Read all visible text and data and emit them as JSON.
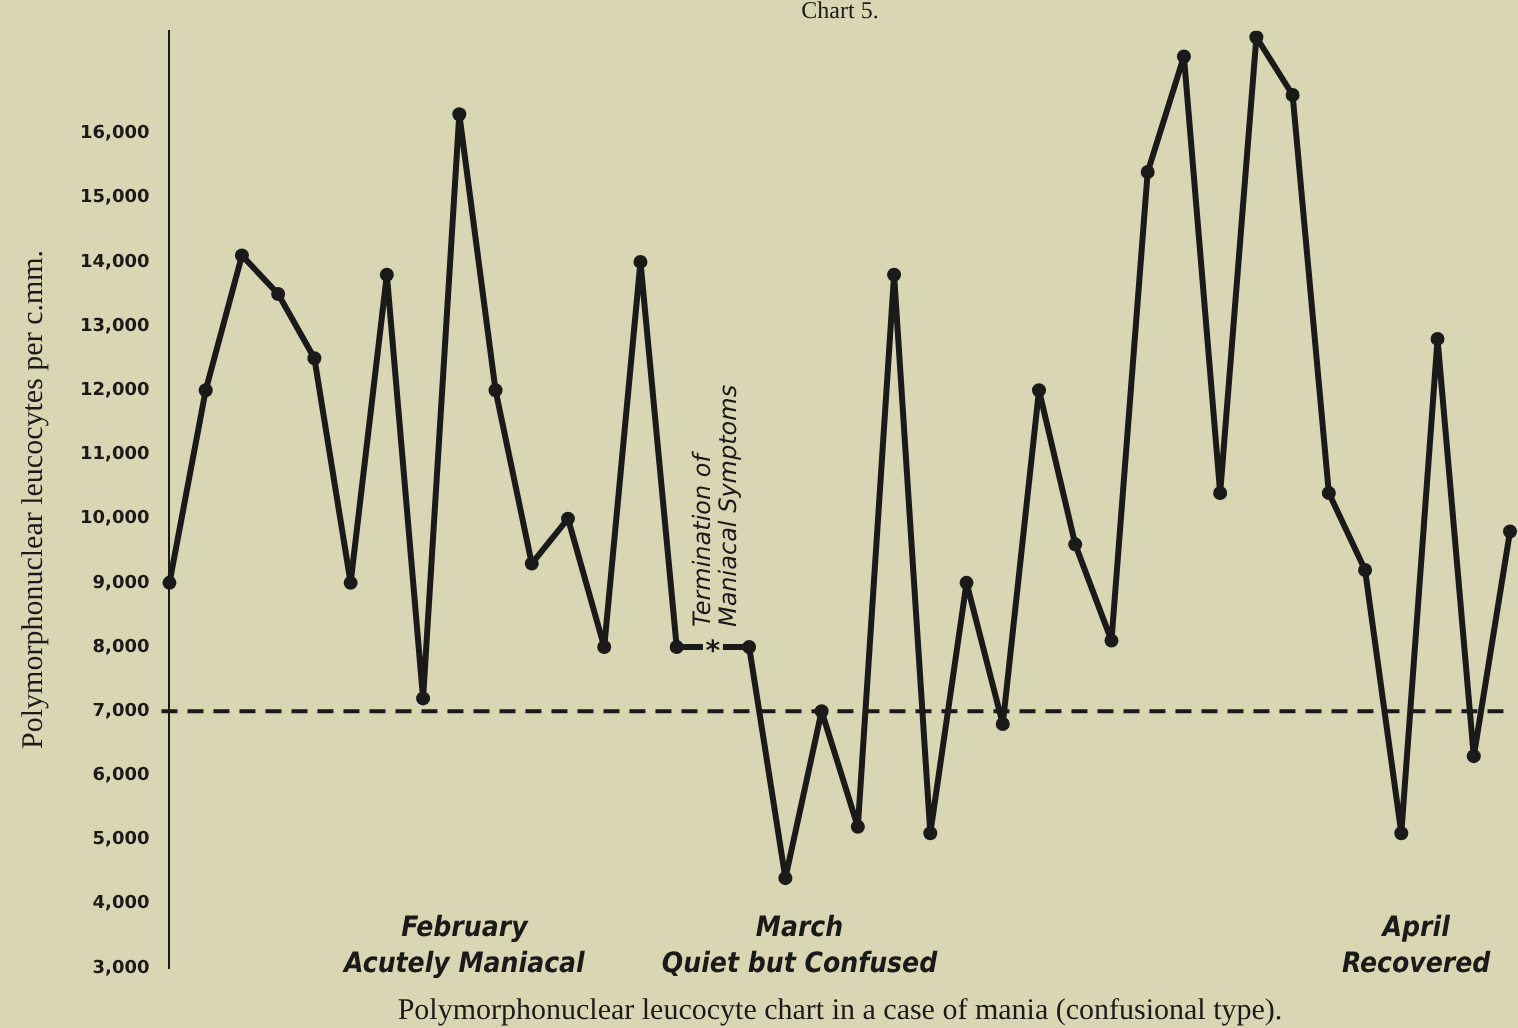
{
  "chart_data": {
    "type": "line",
    "title": "Chart 5.",
    "ylabel": "Polymorphonuclear leucocytes per c.mm.",
    "categories": [
      null,
      null,
      null,
      null,
      null,
      null,
      null,
      null,
      null,
      null,
      null,
      null,
      null,
      null,
      null,
      null,
      null,
      null,
      null,
      null,
      null,
      null,
      null,
      null,
      null,
      null,
      null,
      null,
      null,
      null,
      null,
      null,
      null,
      null,
      null,
      null,
      null,
      null
    ],
    "series": [
      {
        "color": "#1a1a1a",
        "values": [
          9000,
          12000,
          14100,
          13500,
          12500,
          9000,
          13800,
          7200,
          16300,
          12000,
          9300,
          10000,
          8000,
          14000,
          8000,
          null,
          8000,
          4400,
          7000,
          5200,
          13800,
          5100,
          9000,
          6800,
          12000,
          9600,
          8100,
          15400,
          17200,
          10400,
          17500,
          16600,
          10400,
          9200,
          5100,
          12800,
          6300,
          9800
        ]
      }
    ],
    "ylim": [
      3000,
      17600
    ],
    "yticks": [
      {
        "value": 3000,
        "label": "3,000"
      },
      {
        "value": 4000,
        "label": "4,000"
      },
      {
        "value": 5000,
        "label": "5,000"
      },
      {
        "value": 6000,
        "label": "6,000"
      },
      {
        "value": 7000,
        "label": "7,000"
      },
      {
        "value": 8000,
        "label": "8,000"
      },
      {
        "value": 9000,
        "label": "9,000"
      },
      {
        "value": 10000,
        "label": "10,000"
      },
      {
        "value": 11000,
        "label": "11,000"
      },
      {
        "value": 12000,
        "label": "12,000"
      },
      {
        "value": 13000,
        "label": "13,000"
      },
      {
        "value": 14000,
        "label": "14,000"
      },
      {
        "value": 15000,
        "label": "15,000"
      },
      {
        "value": 16000,
        "label": "16,000"
      }
    ],
    "tick_labels": "y",
    "grid": false,
    "legend": false,
    "marker": "circle",
    "line_style": "solid",
    "ref_lines": [
      {
        "axis": "y",
        "value": 7000,
        "color": "#1a1a1a",
        "line_style": "dashed"
      }
    ],
    "annotations": [
      "*",
      "Termination of\nManiacal Symptoms",
      "February\nAcutely Maniacal",
      "March\nQuiet but Confused",
      "April\nRecovered",
      "Polymorphonuclear leucocyte chart in a case of mania (confusional type)."
    ]
  }
}
